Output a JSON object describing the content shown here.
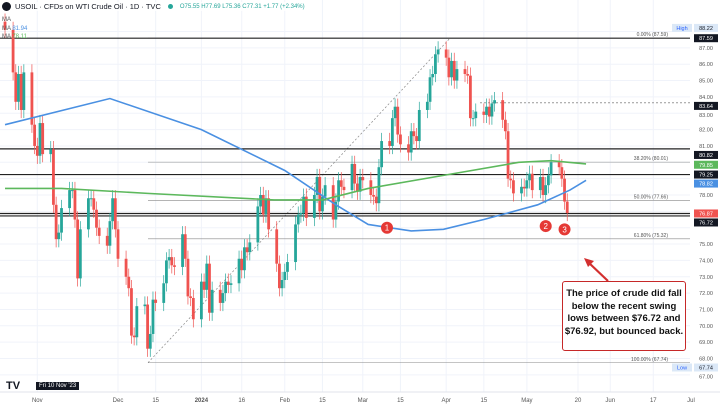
{
  "header": {
    "title": "USOIL · CFDs on WTI Crude Oil · 1D · TVC",
    "ohlc": "O75.55 H77.69 L75.36 C77.31 +1.77 (+2.34%)"
  },
  "indicators": [
    {
      "label": "MA",
      "value": ""
    },
    {
      "label": "MA",
      "value": "81.94"
    },
    {
      "label": "MA",
      "value": "78.11"
    }
  ],
  "crosshair_date": "Fri 10 Nov '23",
  "callout": "The price of crude did fall below the recent swing lows between $76.72 and $76.92, but bounced back.",
  "markers": [
    "1",
    "2",
    "3"
  ],
  "colors": {
    "up": "#26a69a",
    "down": "#ef5350",
    "ma_fast": "#4a90e2",
    "ma_slow": "#5cb85c",
    "callout": "#c62828"
  },
  "chart_data": {
    "type": "candlestick",
    "start_date": "2023-10-20",
    "closes": [
      88.1,
      85.5,
      83.7,
      85.4,
      83.2,
      85.5,
      82.3,
      81.0,
      80.4,
      82.4,
      80.5,
      80.8,
      77.4,
      75.3,
      75.7,
      77.2,
      78.3,
      78.3,
      76.5,
      72.9,
      75.9,
      77.8,
      77.8,
      77.1,
      76.0,
      75.5,
      74.9,
      76.4,
      77.8,
      75.9,
      74.1,
      73.0,
      72.3,
      69.4,
      69.3,
      71.2,
      71.3,
      68.6,
      69.5,
      71.6,
      71.4,
      72.6,
      74.0,
      74.2,
      73.7,
      73.6,
      75.6,
      74.1,
      71.8,
      71.7,
      70.4,
      72.7,
      72.2,
      73.8,
      70.8,
      72.2,
      71.4,
      72.0,
      72.7,
      72.5,
      72.6,
      74.1,
      73.4,
      74.8,
      74.5,
      75.1,
      77.3,
      78.0,
      76.8,
      77.8,
      75.9,
      73.8,
      72.3,
      72.8,
      73.3,
      73.9,
      76.2,
      76.8,
      76.9,
      77.9,
      76.6,
      78.0,
      79.1,
      77.0,
      77.9,
      78.6,
      76.5,
      77.6,
      78.9,
      78.5,
      78.3,
      79.9,
      78.7,
      78.2,
      79.1,
      78.9,
      78.0,
      77.9,
      77.5,
      79.7,
      81.3,
      81.0,
      82.7,
      83.4,
      81.7,
      81.1,
      80.6,
      81.9,
      81.6,
      81.3,
      83.2,
      83.7,
      85.2,
      85.4,
      86.6,
      86.9,
      86.4,
      85.2,
      86.2,
      85.0,
      85.7,
      85.4,
      85.3,
      82.7,
      82.7,
      83.1,
      82.9,
      83.4,
      82.8,
      83.6,
      83.8,
      82.6,
      81.9,
      79.0,
      78.9,
      78.1,
      78.5,
      78.4,
      78.9,
      79.3,
      78.3,
      79.1,
      78.0,
      78.6,
      79.2,
      80.0,
      79.7,
      79.0,
      77.6,
      76.9
    ],
    "ma_fast": [
      [
        "2023-10-20",
        82.3
      ],
      [
        "2023-11-28",
        83.9
      ],
      [
        "2024-01-01",
        82.0
      ],
      [
        "2024-02-01",
        79.5
      ],
      [
        "2024-02-20",
        77.4
      ],
      [
        "2024-03-03",
        76.2
      ],
      [
        "2024-03-19",
        75.8
      ],
      [
        "2024-03-31",
        75.9
      ],
      [
        "2024-04-15",
        76.5
      ],
      [
        "2024-05-05",
        77.4
      ],
      [
        "2024-05-17",
        78.3
      ],
      [
        "2024-05-23",
        78.9
      ]
    ],
    "ma_slow": [
      [
        "2023-10-20",
        78.4
      ],
      [
        "2023-11-10",
        78.4
      ],
      [
        "2023-12-12",
        78.1
      ],
      [
        "2024-01-28",
        77.7
      ],
      [
        "2024-02-15",
        77.7
      ],
      [
        "2024-03-03",
        78.4
      ],
      [
        "2024-03-31",
        79.2
      ],
      [
        "2024-04-28",
        80.0
      ],
      [
        "2024-05-10",
        80.1
      ],
      [
        "2024-05-23",
        79.9
      ]
    ],
    "levels": [
      87.59,
      80.82,
      79.25,
      76.87,
      76.72
    ],
    "dashed_levels": [
      83.64
    ],
    "fib": [
      {
        "label": "0.00% (87.59)",
        "price": 87.59
      },
      {
        "label": "38.20% (80.01)",
        "price": 80.01
      },
      {
        "label": "50.00% (77.66)",
        "price": 77.66
      },
      {
        "label": "61.80% (75.32)",
        "price": 75.32
      },
      {
        "label": "100.00% (67.74)",
        "price": 67.74
      }
    ],
    "y_ticks": [
      "87.00",
      "86.00",
      "85.00",
      "84.00",
      "83.00",
      "82.00",
      "81.00",
      "78.00",
      "75.00",
      "74.00",
      "73.00",
      "72.00",
      "71.00",
      "70.00",
      "69.00",
      "68.00",
      "67.00"
    ],
    "price_labels": [
      {
        "text": "88.22",
        "price": 88.22,
        "tag": "High",
        "bg": "#dbe8f7",
        "fg": "#131722"
      },
      {
        "text": "87.59",
        "price": 87.59,
        "bg": "#131722",
        "fg": "#fff"
      },
      {
        "text": "83.64",
        "price": 83.64,
        "bg": "#131722",
        "fg": "#fff"
      },
      {
        "text": "80.82",
        "price": 80.82,
        "bg": "#131722",
        "fg": "#fff"
      },
      {
        "text": "79.85",
        "price": 79.85,
        "bg": "#5cb85c",
        "fg": "#fff"
      },
      {
        "text": "79.25",
        "price": 79.25,
        "bg": "#131722",
        "fg": "#fff"
      },
      {
        "text": "78.82",
        "price": 78.82,
        "bg": "#4a90e2",
        "fg": "#fff"
      },
      {
        "text": "76.87",
        "price": 76.87,
        "bg": "#ef5350",
        "fg": "#fff"
      },
      {
        "text": "76.72",
        "price": 76.72,
        "bg": "#131722",
        "fg": "#fff"
      },
      {
        "text": "67.74",
        "price": 67.74,
        "tag": "Low",
        "bg": "#dbe8f7",
        "fg": "#131722"
      }
    ],
    "x_ticks": [
      [
        "Nov",
        "2023-11-01"
      ],
      [
        "Dec",
        "2023-12-01"
      ],
      [
        "15",
        "2023-12-15"
      ],
      [
        "2024",
        "2024-01-01"
      ],
      [
        "16",
        "2024-01-16"
      ],
      [
        "Feb",
        "2024-02-01"
      ],
      [
        "15",
        "2024-02-15"
      ],
      [
        "Mar",
        "2024-03-01"
      ],
      [
        "15",
        "2024-03-15"
      ],
      [
        "Apr",
        "2024-04-01"
      ],
      [
        "15",
        "2024-04-15"
      ],
      [
        "May",
        "2024-05-01"
      ],
      [
        "20",
        "2024-05-20"
      ],
      [
        "Jun",
        "2024-06-01"
      ],
      [
        "17",
        "2024-06-17"
      ],
      [
        "Jul",
        "2024-07-01"
      ]
    ],
    "marker_points": [
      [
        "2024-03-10",
        76.0
      ],
      [
        "2024-05-08",
        76.1
      ],
      [
        "2024-05-15",
        75.9
      ]
    ]
  },
  "tv_logo": "TV"
}
